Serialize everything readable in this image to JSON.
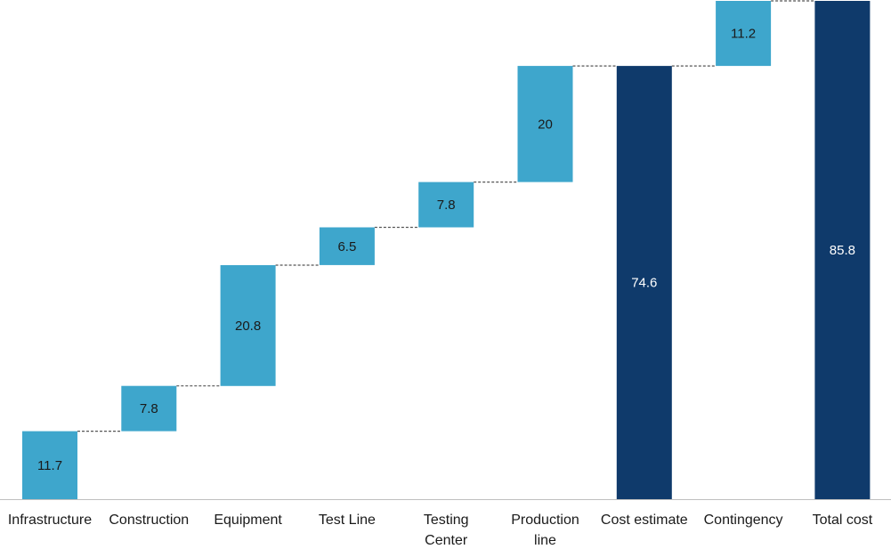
{
  "chart_data": {
    "type": "bar",
    "subtype": "waterfall",
    "title": "",
    "xlabel": "",
    "ylabel": "",
    "ylim": [
      0,
      85.8
    ],
    "grid": false,
    "legend": "none",
    "categories": [
      [
        "Infrastructure"
      ],
      [
        "Construction"
      ],
      [
        "Equipment"
      ],
      [
        "Test Line"
      ],
      [
        "Testing",
        "Center"
      ],
      [
        "Production",
        "line"
      ],
      [
        "Cost estimate"
      ],
      [
        "Contingency"
      ],
      [
        "Total cost"
      ]
    ],
    "values": [
      11.7,
      7.8,
      20.8,
      6.5,
      7.8,
      20,
      74.6,
      11.2,
      85.8
    ],
    "value_labels": [
      "11.7",
      "7.8",
      "20.8",
      "6.5",
      "7.8",
      "20",
      "74.6",
      "11.2",
      "85.8"
    ],
    "is_total": [
      false,
      false,
      false,
      false,
      false,
      false,
      true,
      false,
      true
    ],
    "colors": {
      "increment": "#3ea6cc",
      "total": "#0f3a6b",
      "connector": "#555555"
    }
  }
}
